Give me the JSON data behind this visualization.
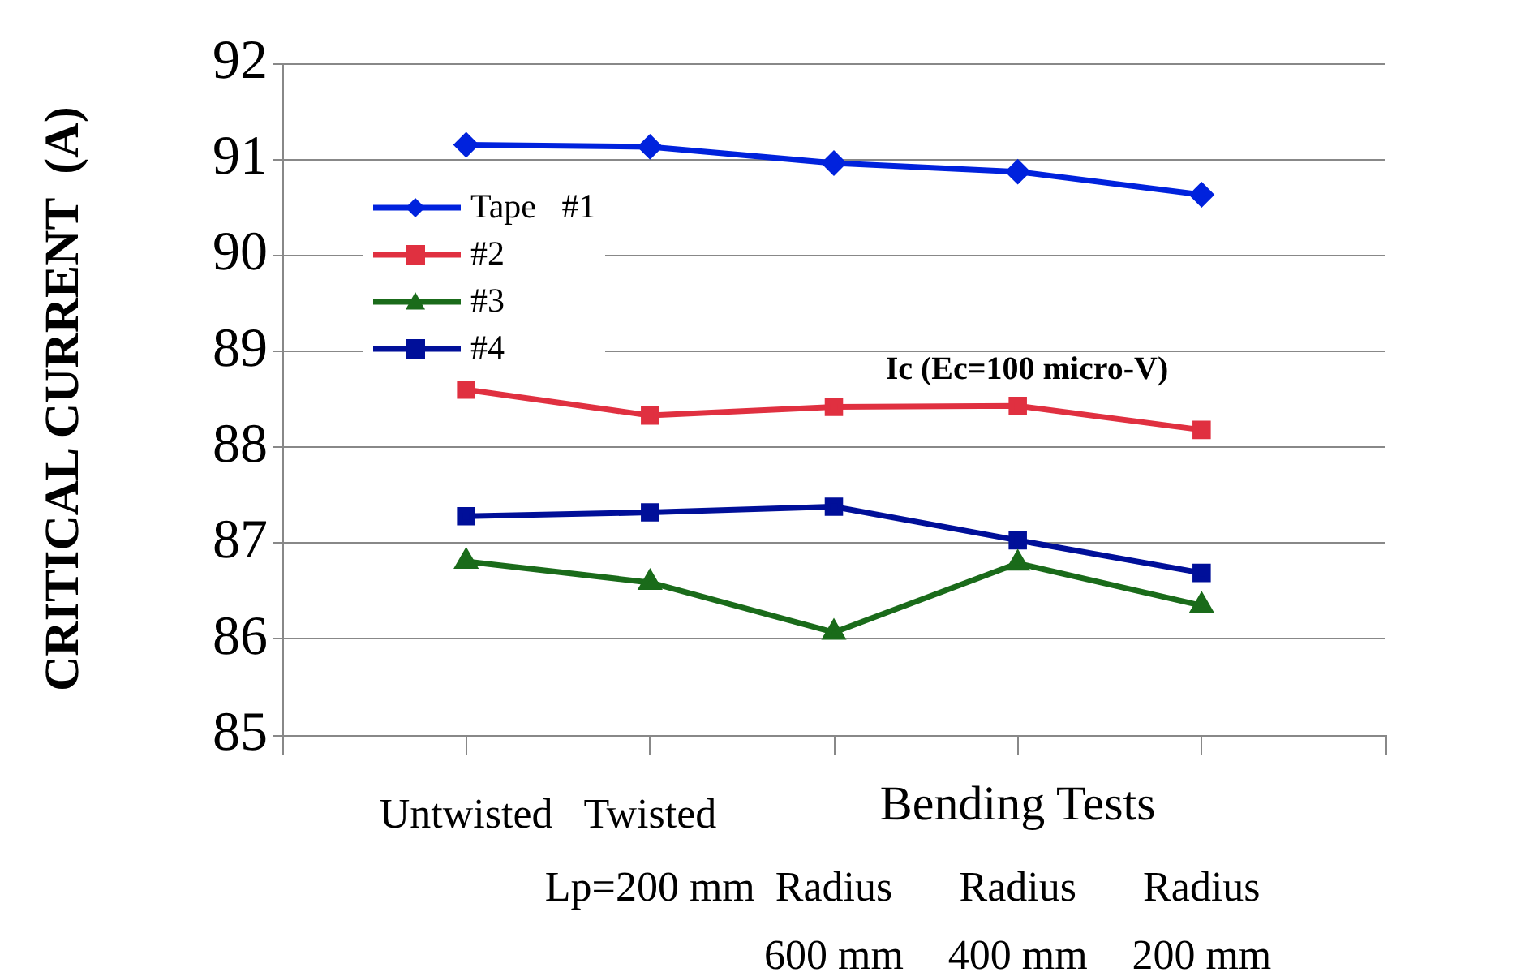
{
  "chart_data": {
    "type": "line",
    "ylabel": "CRITICAL CURRENT  (A)",
    "categories": [
      "Untwisted",
      "Twisted\nLp=200 mm",
      "Radius\n600 mm",
      "Radius\n400 mm",
      "Radius\n200 mm"
    ],
    "series": [
      {
        "name": "Tape   #1",
        "color": "#0022dd",
        "marker": "diamond",
        "values": [
          91.15,
          91.13,
          90.96,
          90.87,
          90.63
        ]
      },
      {
        "name": "#2",
        "color": "#e03040",
        "marker": "square",
        "values": [
          88.6,
          88.33,
          88.42,
          88.43,
          88.18
        ]
      },
      {
        "name": "#3",
        "color": "#1a6b1a",
        "marker": "triangle",
        "values": [
          86.81,
          86.59,
          86.07,
          86.79,
          86.35
        ]
      },
      {
        "name": "#4",
        "color": "#000f99",
        "marker": "square",
        "values": [
          87.28,
          87.32,
          87.38,
          87.03,
          86.69
        ]
      }
    ],
    "ylim": [
      85,
      92
    ],
    "yticks": [
      85,
      86,
      87,
      88,
      89,
      90,
      91,
      92
    ],
    "grid": "y",
    "legend": "top left",
    "annotations": [
      "Ic (Ec=100 micro-V)",
      "Bending Tests"
    ]
  }
}
